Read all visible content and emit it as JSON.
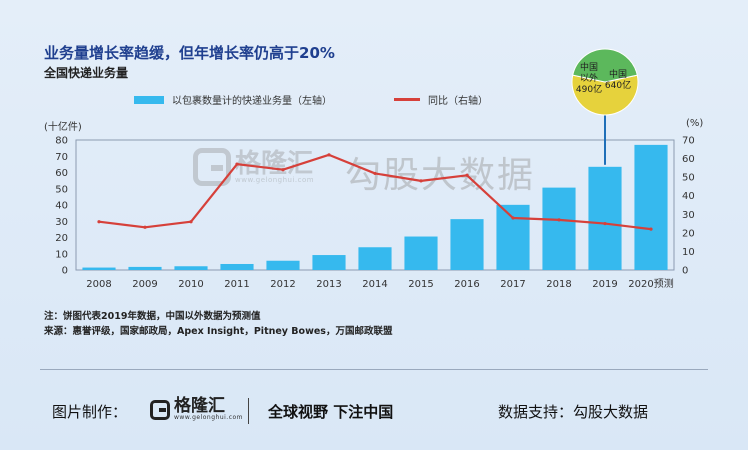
{
  "header": {
    "title": "业务量增长率趋缓，但年增长率仍高于20%",
    "subtitle": "全国快递业务量"
  },
  "legend": {
    "bar_label": "以包裹数量计的快递业务量（左轴）",
    "line_label": "同比（右轴）"
  },
  "axes": {
    "left_unit": "(十亿件)",
    "right_unit": "(%)"
  },
  "watermark": {
    "logo_cn": "格隆汇",
    "logo_en": "www.gelonghui.com",
    "text": "勾股大数据"
  },
  "pie_inset": {
    "outer_label": "中国\n以外\n490亿",
    "inner_label": "中国\n640亿",
    "outer_value": 490,
    "inner_value": 640,
    "colors": {
      "outer": "#5cb85c",
      "inner": "#e6d23c"
    }
  },
  "chart_data": {
    "type": "bar",
    "categories": [
      "2008",
      "2009",
      "2010",
      "2011",
      "2012",
      "2013",
      "2014",
      "2015",
      "2016",
      "2017",
      "2018",
      "2019",
      "2020预测"
    ],
    "series": [
      {
        "name": "以包裹数量计的快递业务量（左轴）",
        "axis": "left",
        "type": "bar",
        "color": "#36b9ee",
        "values": [
          1.5,
          1.9,
          2.3,
          3.7,
          5.7,
          9.2,
          14.0,
          20.6,
          31.3,
          40.1,
          50.7,
          63.5,
          77.0
        ]
      },
      {
        "name": "同比（右轴）",
        "axis": "right",
        "type": "line",
        "color": "#d6403a",
        "values": [
          26,
          23,
          26,
          57,
          54,
          62,
          52,
          48,
          51,
          28,
          27,
          25,
          22
        ]
      }
    ],
    "ylim_left": [
      0,
      80
    ],
    "yticks_left": [
      0,
      10,
      20,
      30,
      40,
      50,
      60,
      70,
      80
    ],
    "ylim_right": [
      0,
      70
    ],
    "yticks_right": [
      0,
      10,
      20,
      30,
      40,
      50,
      60,
      70
    ],
    "grid": false,
    "legend_position": "top"
  },
  "notes": {
    "note": "注：饼图代表2019年数据，中国以外数据为预测值",
    "source": "来源：惠誉评级，国家邮政局，Apex Insight，Pitney Bowes，万国邮政联盟"
  },
  "footer": {
    "made_by": "图片制作：",
    "logo_cn": "格隆汇",
    "logo_en": "www.gelonghui.com",
    "slogan": "全球视野 下注中国",
    "data_support": "数据支持：勾股大数据"
  }
}
